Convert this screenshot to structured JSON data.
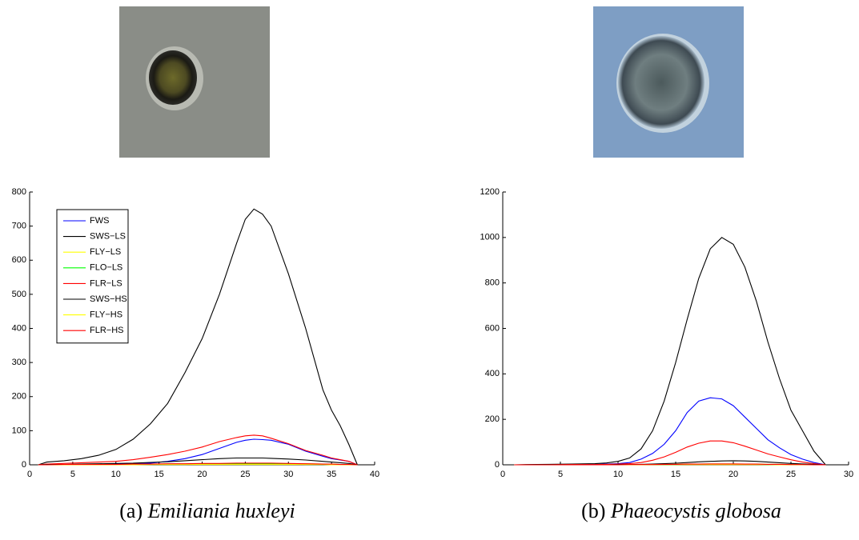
{
  "chart_data": [
    {
      "type": "line",
      "caption_label": "(a)",
      "caption_species": "Emiliania huxleyi",
      "x": [
        1,
        2,
        4,
        6,
        8,
        10,
        12,
        14,
        16,
        18,
        20,
        22,
        24,
        25,
        26,
        27,
        28,
        30,
        32,
        34,
        35,
        36,
        37,
        38
      ],
      "xlim": [
        0,
        40
      ],
      "xticks": [
        0,
        5,
        10,
        15,
        20,
        25,
        30,
        35,
        40
      ],
      "ylim": [
        0,
        800
      ],
      "yticks": [
        0,
        100,
        200,
        300,
        400,
        500,
        600,
        700,
        800
      ],
      "legend": "upper left",
      "series": [
        {
          "name": "FWS",
          "color": "#0000ff",
          "values": [
            0,
            0,
            0,
            0,
            1,
            2,
            3,
            5,
            10,
            18,
            30,
            48,
            66,
            72,
            75,
            74,
            72,
            60,
            40,
            25,
            18,
            14,
            10,
            0
          ]
        },
        {
          "name": "SWS−LS",
          "color": "#000000",
          "values": [
            0,
            8,
            12,
            18,
            28,
            45,
            75,
            120,
            180,
            270,
            370,
            500,
            650,
            720,
            750,
            735,
            700,
            560,
            400,
            220,
            160,
            115,
            60,
            0
          ]
        },
        {
          "name": "FLY−LS",
          "color": "#ffff00",
          "values": [
            0,
            0,
            0,
            0,
            0,
            1,
            1,
            1,
            2,
            2,
            3,
            3,
            4,
            4,
            4,
            4,
            4,
            3,
            3,
            2,
            2,
            1,
            1,
            0
          ]
        },
        {
          "name": "FLO−LS",
          "color": "#00ff00",
          "values": [
            0,
            0,
            0,
            0,
            0,
            0,
            1,
            1,
            1,
            1,
            2,
            2,
            2,
            2,
            2,
            2,
            2,
            2,
            1,
            1,
            1,
            1,
            0,
            0
          ]
        },
        {
          "name": "FLR−LS",
          "color": "#ff0000",
          "values": [
            0,
            2,
            4,
            6,
            8,
            10,
            15,
            22,
            30,
            40,
            52,
            68,
            80,
            85,
            87,
            85,
            78,
            62,
            42,
            28,
            20,
            15,
            10,
            0
          ]
        },
        {
          "name": "SWS−HS",
          "color": "#000000",
          "values": [
            0,
            1,
            1,
            2,
            3,
            4,
            5,
            7,
            9,
            12,
            15,
            18,
            20,
            20,
            20,
            20,
            19,
            17,
            14,
            10,
            8,
            6,
            4,
            0
          ]
        },
        {
          "name": "FLY−HS",
          "color": "#ffff00",
          "values": [
            0,
            0,
            0,
            0,
            0,
            0,
            0,
            1,
            1,
            1,
            1,
            1,
            1,
            1,
            1,
            1,
            1,
            1,
            1,
            1,
            0,
            0,
            0,
            0
          ]
        },
        {
          "name": "FLR−HS",
          "color": "#ff0000",
          "values": [
            0,
            0,
            1,
            1,
            1,
            1,
            2,
            2,
            3,
            3,
            4,
            4,
            5,
            5,
            5,
            5,
            5,
            4,
            3,
            2,
            2,
            1,
            1,
            0
          ]
        }
      ]
    },
    {
      "type": "line",
      "caption_label": "(b)",
      "caption_species": "Phaeocystis globosa",
      "x": [
        1,
        2,
        4,
        6,
        8,
        9,
        10,
        11,
        12,
        13,
        14,
        15,
        16,
        17,
        18,
        19,
        20,
        21,
        22,
        23,
        24,
        25,
        26,
        27,
        28
      ],
      "xlim": [
        0,
        30
      ],
      "xticks": [
        0,
        5,
        10,
        15,
        20,
        25,
        30
      ],
      "ylim": [
        0,
        1200
      ],
      "yticks": [
        0,
        200,
        400,
        600,
        800,
        1000,
        1200
      ],
      "series": [
        {
          "color": "#0000ff",
          "values": [
            0,
            0,
            1,
            1,
            2,
            3,
            5,
            10,
            25,
            50,
            90,
            150,
            230,
            280,
            295,
            290,
            260,
            210,
            160,
            110,
            75,
            45,
            25,
            10,
            0
          ]
        },
        {
          "color": "#000000",
          "values": [
            0,
            1,
            2,
            3,
            5,
            8,
            15,
            30,
            70,
            150,
            280,
            450,
            640,
            820,
            950,
            1000,
            970,
            870,
            720,
            540,
            380,
            240,
            150,
            60,
            0
          ]
        },
        {
          "color": "#ffff00",
          "values": [
            0,
            0,
            0,
            0,
            0,
            0,
            0,
            1,
            1,
            1,
            2,
            2,
            3,
            3,
            4,
            4,
            4,
            3,
            3,
            2,
            2,
            1,
            1,
            0,
            0
          ]
        },
        {
          "color": "#00ff00",
          "values": [
            0,
            0,
            0,
            0,
            0,
            0,
            0,
            0,
            1,
            1,
            1,
            1,
            2,
            2,
            2,
            2,
            2,
            2,
            2,
            1,
            1,
            1,
            0,
            0,
            0
          ]
        },
        {
          "color": "#ff0000",
          "values": [
            0,
            0,
            0,
            1,
            1,
            2,
            3,
            5,
            10,
            20,
            35,
            55,
            78,
            95,
            105,
            105,
            97,
            82,
            65,
            48,
            35,
            22,
            12,
            5,
            0
          ]
        },
        {
          "color": "#000000",
          "values": [
            0,
            0,
            0,
            0,
            0,
            0,
            1,
            1,
            2,
            3,
            5,
            7,
            10,
            13,
            15,
            17,
            18,
            17,
            15,
            12,
            9,
            6,
            4,
            2,
            0
          ]
        },
        {
          "color": "#ffff00",
          "values": [
            0,
            0,
            0,
            0,
            0,
            0,
            0,
            0,
            0,
            1,
            1,
            1,
            1,
            1,
            1,
            1,
            1,
            1,
            1,
            1,
            0,
            0,
            0,
            0,
            0
          ]
        },
        {
          "color": "#ff0000",
          "values": [
            0,
            0,
            0,
            0,
            0,
            0,
            0,
            1,
            1,
            1,
            2,
            2,
            3,
            3,
            4,
            4,
            4,
            3,
            3,
            2,
            2,
            1,
            1,
            0,
            0
          ]
        }
      ]
    }
  ]
}
